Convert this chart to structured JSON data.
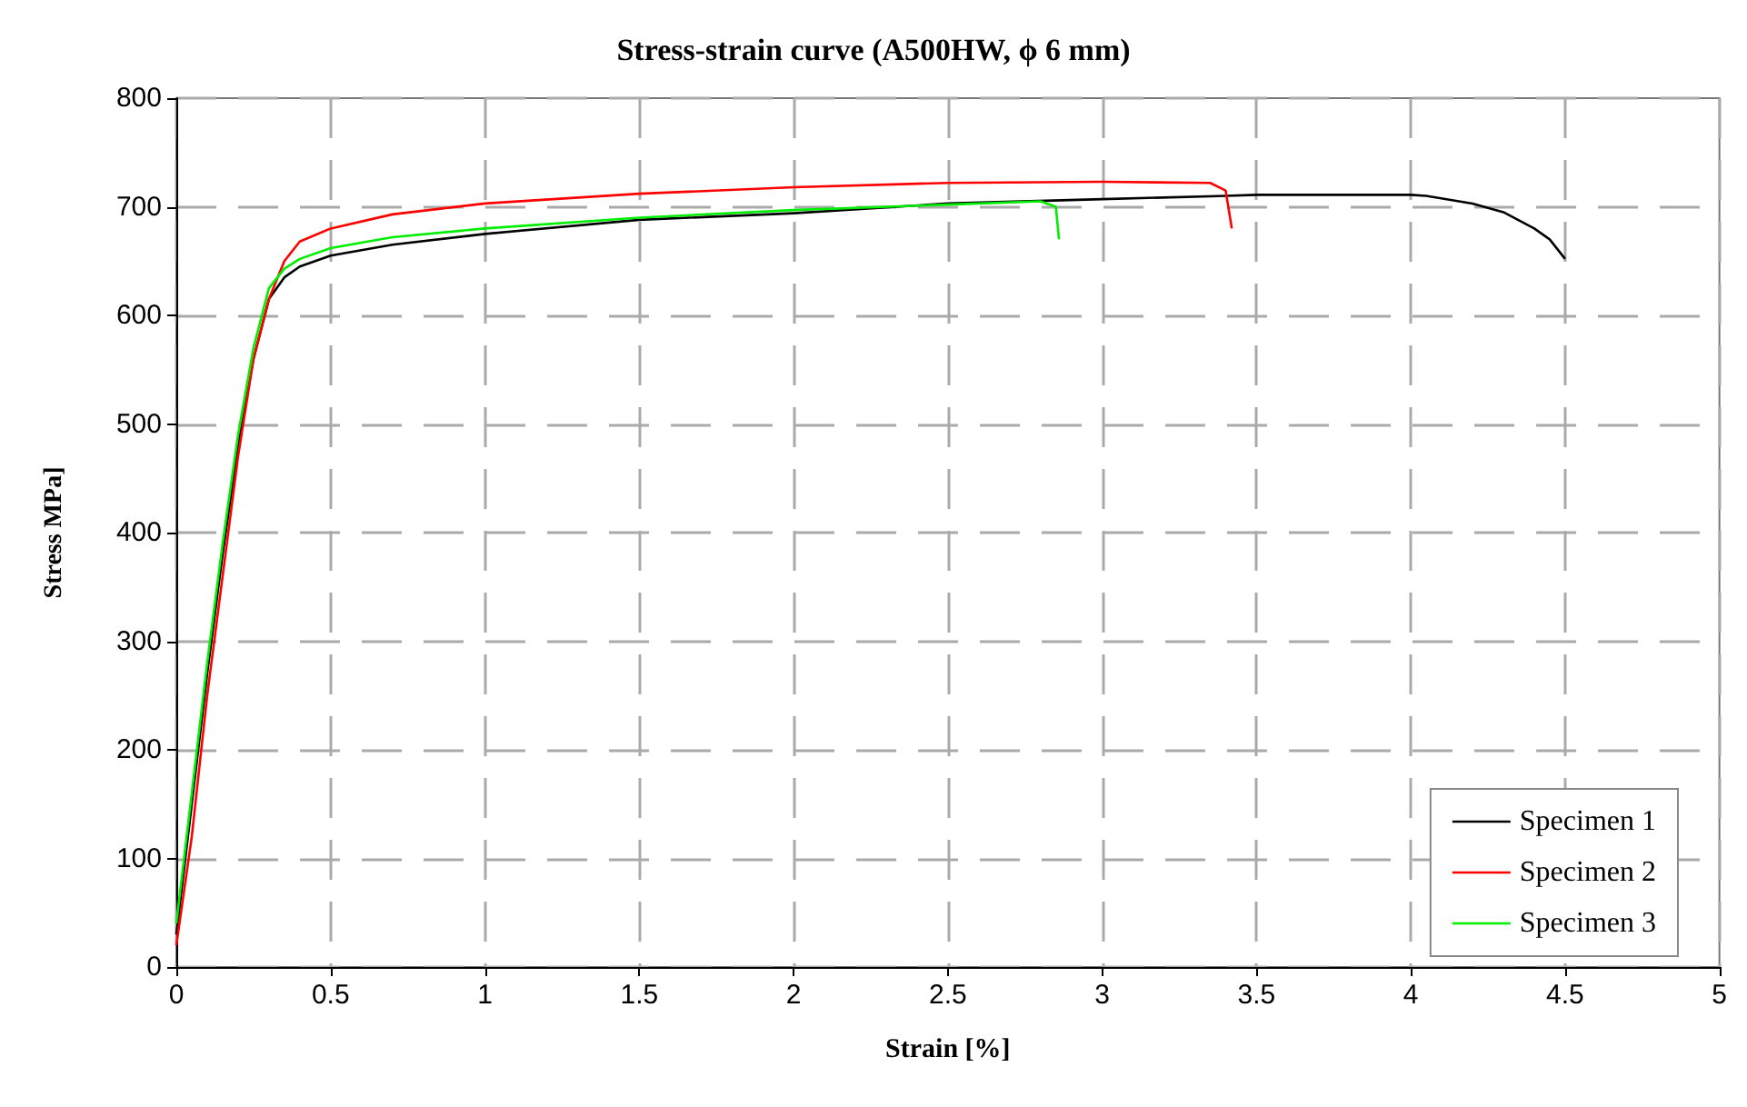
{
  "chart_data": {
    "type": "line",
    "title": "Stress-strain curve (A500HW, ϕ 6 mm)",
    "xlabel": "Strain [%]",
    "ylabel": "Stress MPa]",
    "xlim": [
      0,
      5
    ],
    "xticks": [
      0,
      0.5,
      1,
      1.5,
      2,
      2.5,
      3,
      3.5,
      4,
      4.5,
      5
    ],
    "ylim": [
      0,
      800
    ],
    "yticks": [
      0,
      100,
      200,
      300,
      400,
      500,
      600,
      700,
      800
    ],
    "grid": true,
    "legend": "bottom right",
    "marker": "none",
    "line_style": "solid",
    "series": [
      {
        "name": "Specimen 1",
        "color": "#000000",
        "x": [
          0,
          0.05,
          0.1,
          0.15,
          0.2,
          0.25,
          0.3,
          0.35,
          0.4,
          0.5,
          0.7,
          1,
          1.5,
          2,
          2.5,
          3,
          3.4,
          3.5,
          4,
          4.05,
          4.2,
          4.3,
          4.4,
          4.45,
          4.5
        ],
        "values": [
          30,
          150,
          270,
          380,
          480,
          560,
          615,
          635,
          645,
          655,
          665,
          675,
          688,
          694,
          703,
          707,
          710,
          711,
          711,
          710,
          703,
          695,
          680,
          670,
          652
        ]
      },
      {
        "name": "Specimen 2",
        "color": "#ff0000",
        "x": [
          0,
          0.05,
          0.1,
          0.15,
          0.2,
          0.25,
          0.3,
          0.35,
          0.4,
          0.5,
          0.7,
          1,
          1.5,
          2,
          2.5,
          3,
          3.35,
          3.4,
          3.42
        ],
        "values": [
          20,
          120,
          250,
          360,
          470,
          560,
          615,
          650,
          668,
          680,
          693,
          703,
          712,
          718,
          722,
          723,
          722,
          715,
          680
        ]
      },
      {
        "name": "Specimen 3",
        "color": "#00ee00",
        "x": [
          0,
          0.05,
          0.1,
          0.15,
          0.2,
          0.25,
          0.3,
          0.35,
          0.4,
          0.5,
          0.7,
          1,
          1.5,
          2,
          2.5,
          2.8,
          2.85,
          2.86
        ],
        "values": [
          40,
          160,
          280,
          390,
          490,
          570,
          625,
          643,
          652,
          662,
          672,
          680,
          690,
          697,
          702,
          705,
          700,
          670
        ]
      }
    ]
  }
}
